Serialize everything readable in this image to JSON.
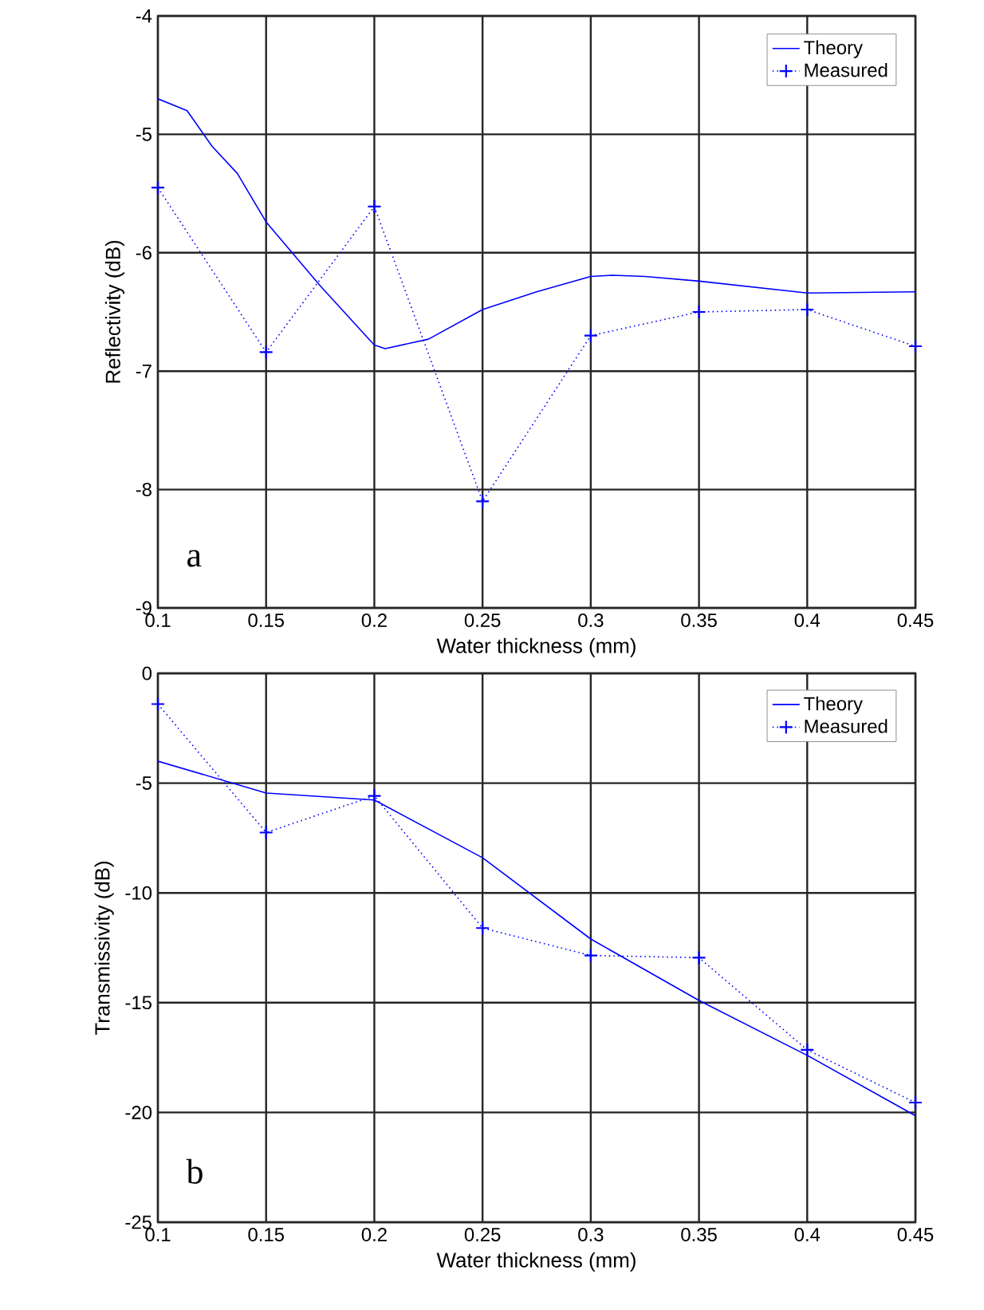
{
  "chart_data": [
    {
      "type": "line",
      "xlabel": "Water thickness (mm)",
      "ylabel": "Reflectivity (dB)",
      "xlim": [
        0.1,
        0.45
      ],
      "ylim": [
        -9,
        -4
      ],
      "xticks": [
        0.1,
        0.15,
        0.2,
        0.25,
        0.3,
        0.35,
        0.4,
        0.45
      ],
      "yticks": [
        -9,
        -8,
        -7,
        -6,
        -5,
        -4
      ],
      "grid": true,
      "legend": "top right",
      "annotations": [
        "a"
      ],
      "series": [
        {
          "name": "Theory",
          "color": "#0000ff",
          "line_style": "solid",
          "marker": "none",
          "x": [
            0.1,
            0.1135,
            0.125,
            0.1367,
            0.15,
            0.175,
            0.2,
            0.205,
            0.225,
            0.25,
            0.275,
            0.3,
            0.31,
            0.325,
            0.35,
            0.4,
            0.45
          ],
          "values": [
            -4.7,
            -4.8,
            -5.1,
            -5.33,
            -5.74,
            -6.28,
            -6.78,
            -6.81,
            -6.73,
            -6.48,
            -6.33,
            -6.2,
            -6.19,
            -6.2,
            -6.24,
            -6.34,
            -6.33
          ]
        },
        {
          "name": "Measured",
          "color": "#0000ff",
          "line_style": "dotted",
          "marker": "cross",
          "x": [
            0.1,
            0.15,
            0.2,
            0.25,
            0.3,
            0.35,
            0.4,
            0.45
          ],
          "values": [
            -5.45,
            -6.84,
            -5.61,
            -8.1,
            -6.7,
            -6.5,
            -6.48,
            -6.79
          ]
        }
      ]
    },
    {
      "type": "line",
      "xlabel": "Water thickness (mm)",
      "ylabel": "Transmissivity (dB)",
      "xlim": [
        0.1,
        0.45
      ],
      "ylim": [
        -25,
        0
      ],
      "xticks": [
        0.1,
        0.15,
        0.2,
        0.25,
        0.3,
        0.35,
        0.4,
        0.45
      ],
      "yticks": [
        -25,
        -20,
        -15,
        -10,
        -5,
        0
      ],
      "grid": true,
      "legend": "top right",
      "annotations": [
        "b"
      ],
      "series": [
        {
          "name": "Theory",
          "color": "#0000ff",
          "line_style": "solid",
          "marker": "none",
          "x": [
            0.1,
            0.15,
            0.2,
            0.25,
            0.3,
            0.35,
            0.4,
            0.45
          ],
          "values": [
            -4.0,
            -5.45,
            -5.77,
            -8.4,
            -12.1,
            -14.9,
            -17.4,
            -20.15
          ]
        },
        {
          "name": "Measured",
          "color": "#0000ff",
          "line_style": "dotted",
          "marker": "cross",
          "x": [
            0.1,
            0.15,
            0.2,
            0.25,
            0.3,
            0.35,
            0.4,
            0.45
          ],
          "values": [
            -1.4,
            -7.25,
            -5.58,
            -11.6,
            -12.85,
            -12.95,
            -17.15,
            -19.55
          ]
        }
      ]
    }
  ]
}
